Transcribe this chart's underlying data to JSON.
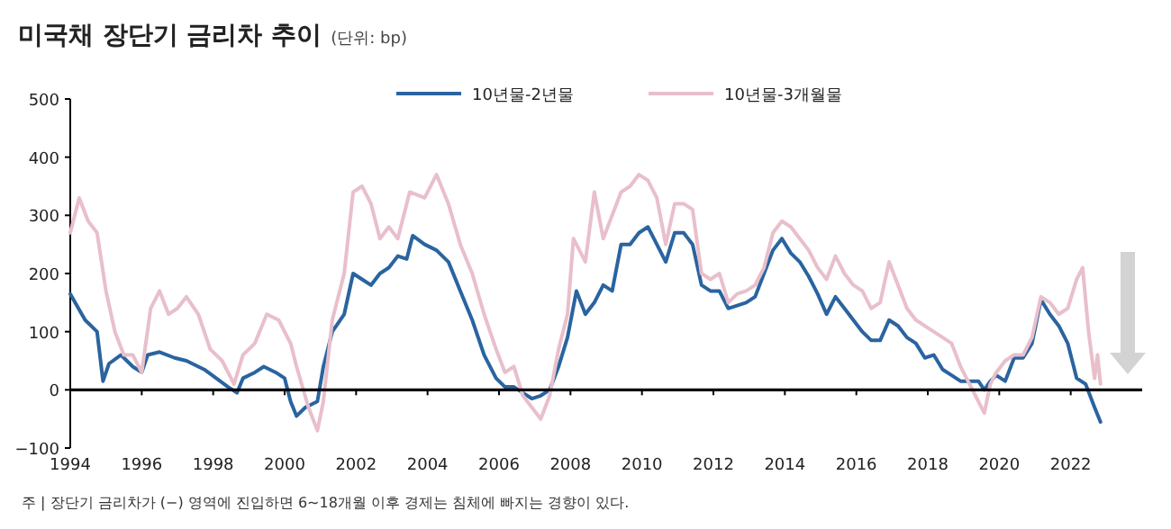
{
  "chart_data": {
    "type": "line",
    "title": "미국채 장단기 금리차 추이",
    "subtitle": "(단위: bp)",
    "annotations": [
      "주 | 장단기 금리차가 (−) 영역에 진입하면 6~18개월 이후 경제는 침체에 빠지는 경향이 있다."
    ],
    "xlim": [
      "1994",
      "2024"
    ],
    "ylim": [
      -100,
      500
    ],
    "xticks": [
      "1994",
      "1996",
      "1998",
      "2000",
      "2002",
      "2004",
      "2006",
      "2008",
      "2010",
      "2012",
      "2014",
      "2016",
      "2018",
      "2020",
      "2022"
    ],
    "yticks": [
      -100,
      0,
      100,
      200,
      300,
      400,
      500
    ],
    "ref_lines": [
      {
        "axis": "y",
        "value": 0,
        "color": "#000000"
      }
    ],
    "legend": "top",
    "grid": false,
    "series": [
      {
        "name": "10년물-2년물",
        "color": "#2a64a0",
        "x": [
          "1994-01",
          "1994-06",
          "1994-10",
          "1994-12",
          "1995-02",
          "1995-06",
          "1995-10",
          "1996-01",
          "1996-03",
          "1996-07",
          "1996-12",
          "1997-04",
          "1997-10",
          "1998-02",
          "1998-06",
          "1998-09",
          "1998-11",
          "1999-03",
          "1999-06",
          "1999-10",
          "2000-01",
          "2000-03",
          "2000-05",
          "2000-08",
          "2000-12",
          "2001-02",
          "2001-05",
          "2001-09",
          "2001-12",
          "2002-03",
          "2002-06",
          "2002-09",
          "2002-12",
          "2003-03",
          "2003-06",
          "2003-08",
          "2003-12",
          "2004-04",
          "2004-08",
          "2004-12",
          "2005-04",
          "2005-08",
          "2005-12",
          "2006-03",
          "2006-06",
          "2006-09",
          "2006-12",
          "2007-03",
          "2007-06",
          "2007-09",
          "2007-12",
          "2008-03",
          "2008-06",
          "2008-09",
          "2008-12",
          "2009-03",
          "2009-06",
          "2009-09",
          "2009-12",
          "2010-03",
          "2010-06",
          "2010-09",
          "2010-12",
          "2011-03",
          "2011-06",
          "2011-09",
          "2011-12",
          "2012-03",
          "2012-06",
          "2012-09",
          "2012-12",
          "2013-03",
          "2013-06",
          "2013-09",
          "2013-12",
          "2014-03",
          "2014-06",
          "2014-09",
          "2014-12",
          "2015-03",
          "2015-06",
          "2015-09",
          "2015-12",
          "2016-03",
          "2016-06",
          "2016-09",
          "2016-12",
          "2017-03",
          "2017-06",
          "2017-09",
          "2017-12",
          "2018-03",
          "2018-06",
          "2018-09",
          "2018-12",
          "2019-03",
          "2019-06",
          "2019-08",
          "2019-10",
          "2019-12",
          "2020-03",
          "2020-06",
          "2020-09",
          "2020-12",
          "2021-03",
          "2021-06",
          "2021-09",
          "2021-12",
          "2022-03",
          "2022-06",
          "2022-09",
          "2022-11"
        ],
        "values": [
          165,
          120,
          100,
          15,
          45,
          60,
          40,
          30,
          60,
          65,
          55,
          50,
          35,
          20,
          5,
          -5,
          20,
          30,
          40,
          30,
          20,
          -20,
          -45,
          -30,
          -20,
          40,
          100,
          130,
          200,
          190,
          180,
          200,
          210,
          230,
          225,
          265,
          250,
          240,
          220,
          170,
          120,
          60,
          20,
          5,
          5,
          -5,
          -15,
          -10,
          0,
          40,
          90,
          170,
          130,
          150,
          180,
          170,
          250,
          250,
          270,
          280,
          250,
          220,
          270,
          270,
          250,
          180,
          170,
          170,
          140,
          145,
          150,
          160,
          200,
          240,
          260,
          235,
          220,
          195,
          165,
          130,
          160,
          140,
          120,
          100,
          85,
          85,
          120,
          110,
          90,
          80,
          55,
          60,
          35,
          25,
          15,
          15,
          15,
          0,
          15,
          25,
          15,
          55,
          55,
          80,
          155,
          130,
          110,
          80,
          20,
          10,
          -30,
          -55
        ]
      },
      {
        "name": "10년물-3개월물",
        "color": "#e8bfcb",
        "x": [
          "1994-01",
          "1994-04",
          "1994-07",
          "1994-10",
          "1995-01",
          "1995-04",
          "1995-07",
          "1995-10",
          "1996-01",
          "1996-04",
          "1996-07",
          "1996-10",
          "1997-01",
          "1997-04",
          "1997-08",
          "1997-12",
          "1998-04",
          "1998-08",
          "1998-11",
          "1999-03",
          "1999-07",
          "1999-11",
          "2000-03",
          "2000-05",
          "2000-09",
          "2000-12",
          "2001-02",
          "2001-05",
          "2001-09",
          "2001-12",
          "2002-03",
          "2002-06",
          "2002-09",
          "2002-12",
          "2003-03",
          "2003-07",
          "2003-12",
          "2004-04",
          "2004-08",
          "2004-12",
          "2005-04",
          "2005-08",
          "2005-12",
          "2006-03",
          "2006-06",
          "2006-09",
          "2006-12",
          "2007-03",
          "2007-06",
          "2007-09",
          "2007-12",
          "2008-02",
          "2008-06",
          "2008-09",
          "2008-12",
          "2009-03",
          "2009-06",
          "2009-09",
          "2009-12",
          "2010-03",
          "2010-06",
          "2010-09",
          "2010-12",
          "2011-03",
          "2011-06",
          "2011-09",
          "2011-12",
          "2012-03",
          "2012-06",
          "2012-09",
          "2012-12",
          "2013-03",
          "2013-06",
          "2013-09",
          "2013-12",
          "2014-03",
          "2014-06",
          "2014-09",
          "2014-12",
          "2015-03",
          "2015-06",
          "2015-09",
          "2015-12",
          "2016-03",
          "2016-06",
          "2016-09",
          "2016-12",
          "2017-03",
          "2017-06",
          "2017-09",
          "2017-12",
          "2018-03",
          "2018-06",
          "2018-09",
          "2018-12",
          "2019-03",
          "2019-06",
          "2019-08",
          "2019-10",
          "2019-12",
          "2020-03",
          "2020-06",
          "2020-09",
          "2020-12",
          "2021-03",
          "2021-06",
          "2021-09",
          "2021-12",
          "2022-03",
          "2022-05",
          "2022-07",
          "2022-09",
          "2022-10",
          "2022-11"
        ],
        "values": [
          270,
          330,
          290,
          270,
          170,
          100,
          60,
          60,
          30,
          140,
          170,
          130,
          140,
          160,
          130,
          70,
          50,
          10,
          60,
          80,
          130,
          120,
          80,
          40,
          -30,
          -70,
          -20,
          120,
          200,
          340,
          350,
          320,
          260,
          280,
          260,
          340,
          330,
          370,
          320,
          250,
          200,
          130,
          70,
          30,
          40,
          -10,
          -30,
          -50,
          -10,
          70,
          130,
          260,
          220,
          340,
          260,
          300,
          340,
          350,
          370,
          360,
          330,
          250,
          320,
          320,
          310,
          200,
          190,
          200,
          150,
          165,
          170,
          180,
          210,
          270,
          290,
          280,
          260,
          240,
          210,
          190,
          230,
          200,
          180,
          170,
          140,
          150,
          220,
          180,
          140,
          120,
          110,
          100,
          90,
          80,
          40,
          10,
          -20,
          -40,
          10,
          30,
          50,
          60,
          60,
          90,
          160,
          150,
          130,
          140,
          190,
          210,
          100,
          20,
          60,
          10
        ]
      }
    ]
  }
}
